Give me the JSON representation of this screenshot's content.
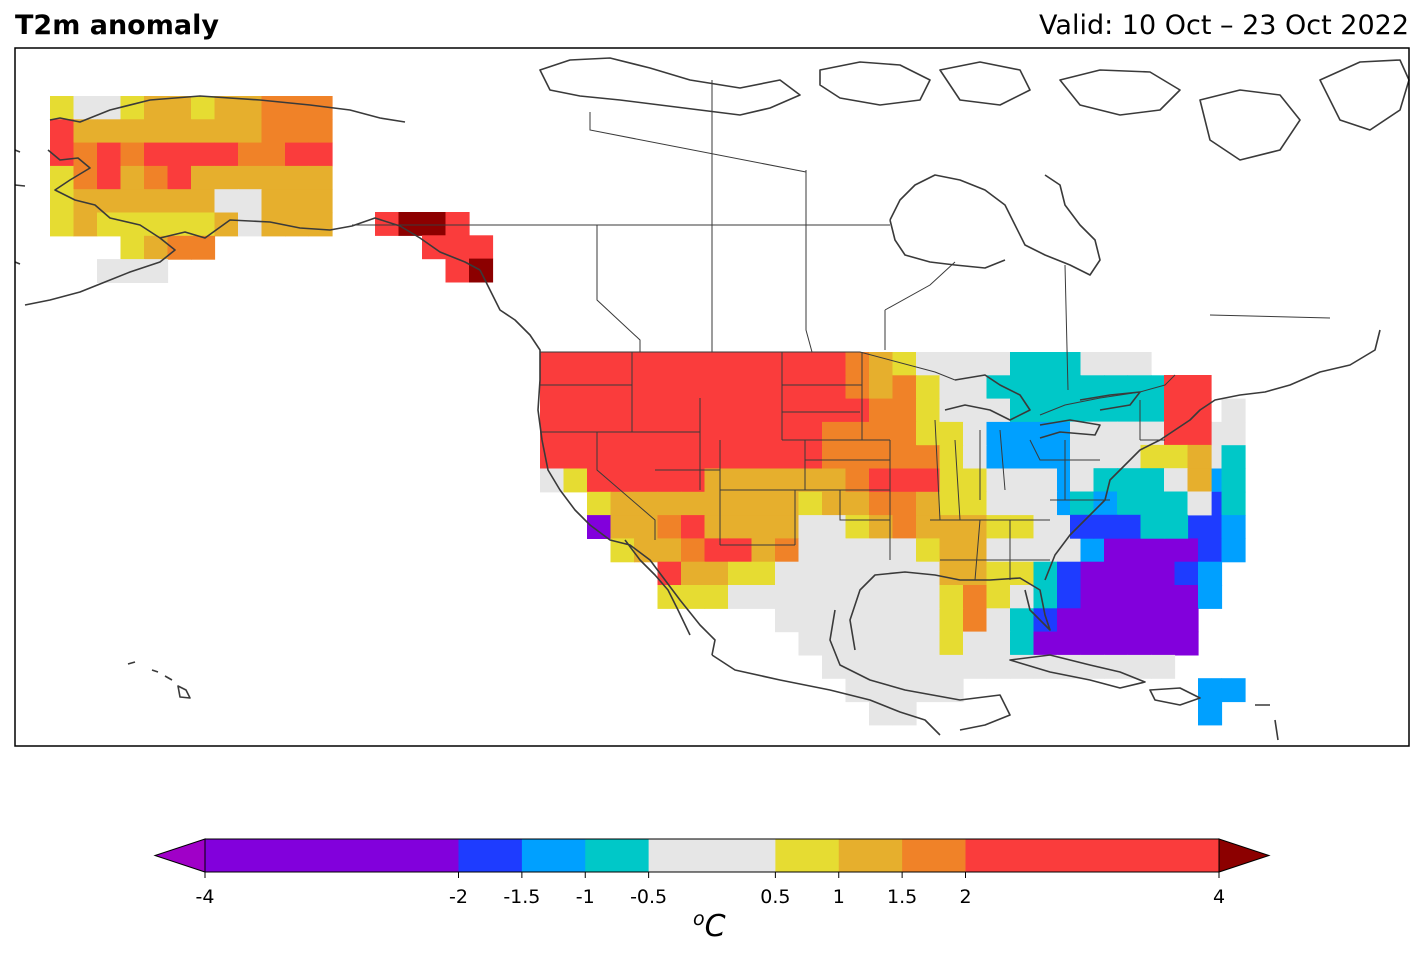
{
  "title_left": "T2m anomaly",
  "title_right": "Valid: 10 Oct – 23 Oct 2022",
  "colorbar": {
    "unit_base": "C",
    "unit_superscript": "o",
    "extend": "both",
    "underflow_color": "#a000c8",
    "overflow_color": "#8c0000",
    "bins": [
      {
        "from": -4,
        "to": -2,
        "color": "#8200dc"
      },
      {
        "from": -2,
        "to": -1.5,
        "color": "#1e3cff"
      },
      {
        "from": -1.5,
        "to": -1,
        "color": "#00a0ff"
      },
      {
        "from": -1,
        "to": -0.5,
        "color": "#00c8c8"
      },
      {
        "from": -0.5,
        "to": 0.5,
        "color": "#e6e6e6"
      },
      {
        "from": 0.5,
        "to": 1,
        "color": "#e6dc32"
      },
      {
        "from": 1,
        "to": 1.5,
        "color": "#e6af2d"
      },
      {
        "from": 1.5,
        "to": 2,
        "color": "#f08228"
      },
      {
        "from": 2,
        "to": 4,
        "color": "#fa3c3c"
      }
    ],
    "ticks": [
      {
        "value": -4,
        "label": "-4"
      },
      {
        "value": -2,
        "label": "-2"
      },
      {
        "value": -1.5,
        "label": "-1.5"
      },
      {
        "value": -1,
        "label": "-1"
      },
      {
        "value": -0.5,
        "label": "-0.5"
      },
      {
        "value": 0.5,
        "label": "0.5"
      },
      {
        "value": 1,
        "label": "1"
      },
      {
        "value": 1.5,
        "label": "1.5"
      },
      {
        "value": 2,
        "label": "2"
      },
      {
        "value": 4,
        "label": "4"
      }
    ]
  },
  "anomaly_grid_legend": {
    "P": "< -2 °C",
    "B": "-2 to -1.5 °C",
    "L": "-1.5 to -1 °C",
    "C": "-1 to -0.5 °C",
    "G": "-0.5 to 0.5 °C",
    "Y": "0.5 to 1 °C",
    "A": "1 to 1.5 °C",
    "O": "1.5 to 2 °C",
    "R": "2 to 4 °C",
    "D": "> 4 °C"
  },
  "anomaly_blocks": [
    {
      "region": "Alaska",
      "rows": [
        "YGGYAAYAAOOO",
        "RAAAAAAAAOOO",
        "RORORRRROORR",
        "YORAORAAAAAA",
        "YAAAAAAGGAAA",
        "YAYYYYYAGAAA",
        "...YAOO.....",
        "..GGG......."
      ]
    },
    {
      "region": "Alaska panhandle",
      "rows": [
        "RDDR.",
        "..RRR",
        "...RD"
      ]
    },
    {
      "region": "Contiguous United States",
      "rows": [
        "RRRRRRRRRRRRROAYGGGGCCCGGG....",
        "RRRRRRRRRRRRROAOYGGCCCCCCCCC..",
        "RRRRRRRRRRRRRROOYGGGCCCCCCCG.G",
        "RRRRRRRRRRRROOOOYYGLLLLLLCCGGG",
        "RRRRRRRRRRRROOOOOYGLLLLCLLGGGC",
        "GYRRRRRAAAAAAORRRYYGGGLLLLLBLC",
        "..YAAAAAAAAYAAOOAYYGGGLLLCBBBC",
        "..PAAORAAAAGGYAOAAAYYGGCBPPBBL",
        "...YAAORRAOGGGGGYAAGGGGLPPPPBL",
        ".....RAAYYGGGGGGGAAYYCBPPPPBL.",
        ".....YYYGGGGGGGGGYOYGCBPPPPPL.",
        "..........GGGGGGGYOGCBPPPPPP..",
        "...........GGGGGGYGGCPPPPPPP..",
        "............GGGGGGGGGGGGGGG...",
        ".............GGGGG..........LL",
        "..............GG............L."
      ]
    },
    {
      "region": "Northeast",
      "rows": [
        "....RR",
        "....RR",
        "GGGGRR",
        "GGGYYA",
        "GCCCGA",
        "CLCCCG",
        "BBBCC."
      ]
    }
  ]
}
